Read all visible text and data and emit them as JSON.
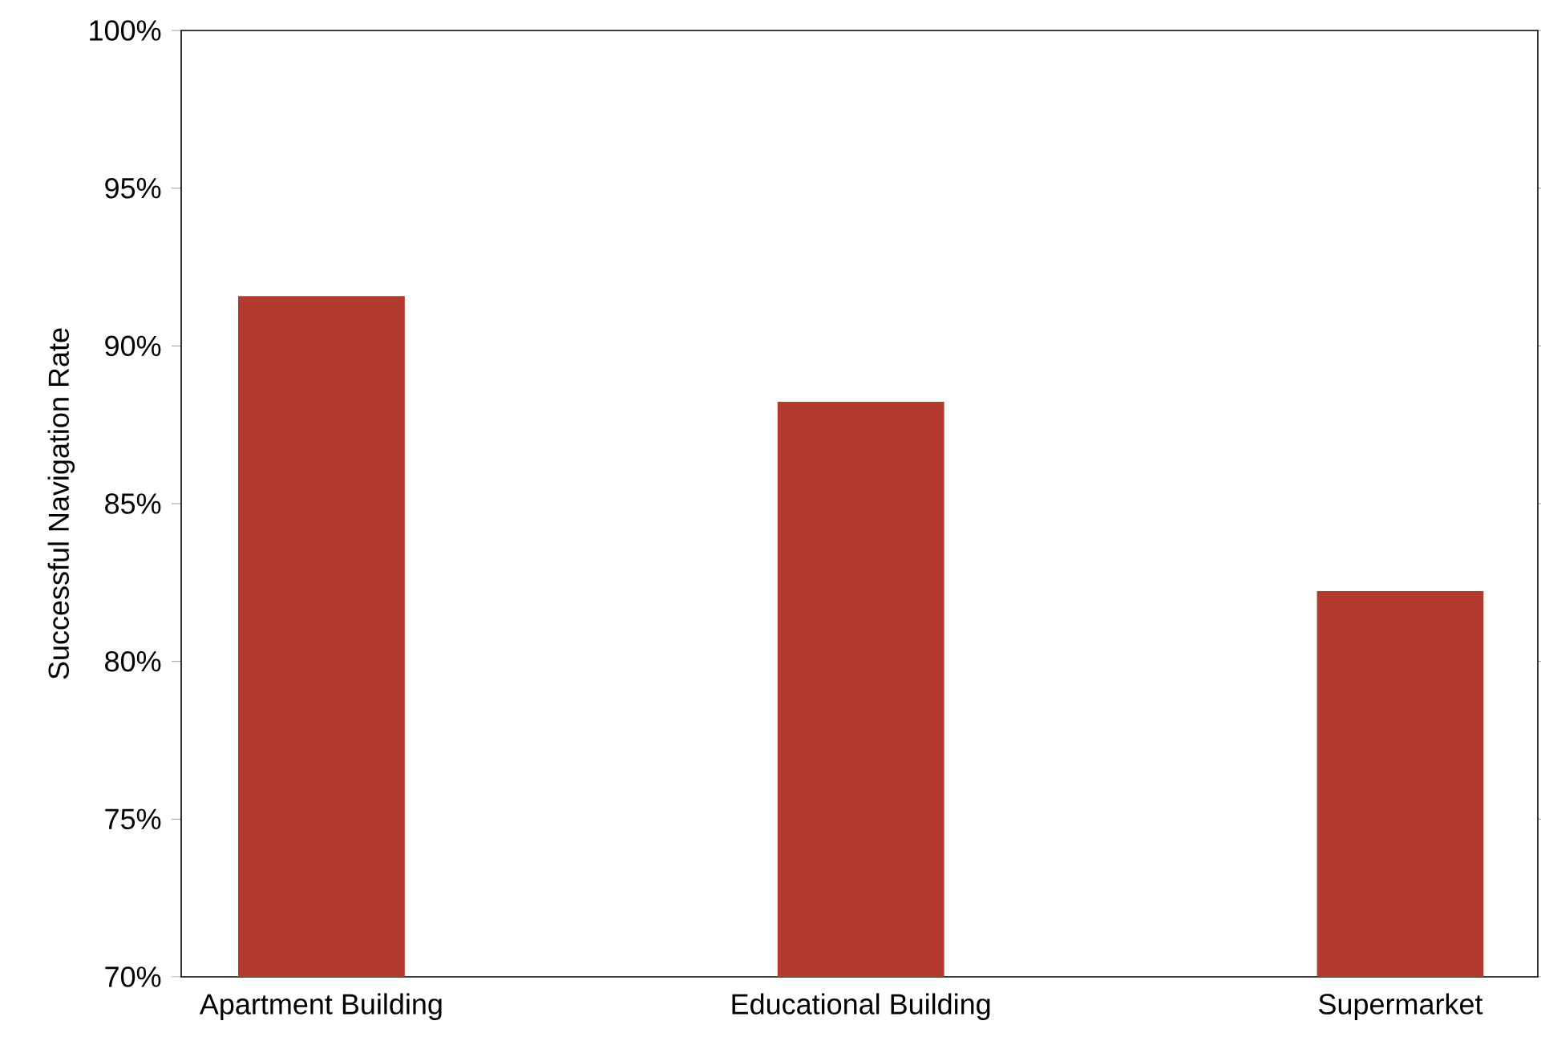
{
  "chart_data": {
    "type": "bar",
    "ylabel": "Successful Navigation Rate",
    "categories": [
      "Apartment Building",
      "Educational Building",
      "Supermarket"
    ],
    "values": [
      91.5,
      88.15,
      82.15
    ],
    "color": "#b23a2f",
    "grid": false,
    "ylim": [
      70,
      100
    ],
    "yticks": [
      {
        "value": 70,
        "label": "70%"
      },
      {
        "value": 75,
        "label": "75%"
      },
      {
        "value": 80,
        "label": "80%"
      },
      {
        "value": 85,
        "label": "85%"
      },
      {
        "value": 90,
        "label": "90%"
      },
      {
        "value": 95,
        "label": "95%"
      },
      {
        "value": 100,
        "label": "100%"
      }
    ]
  }
}
